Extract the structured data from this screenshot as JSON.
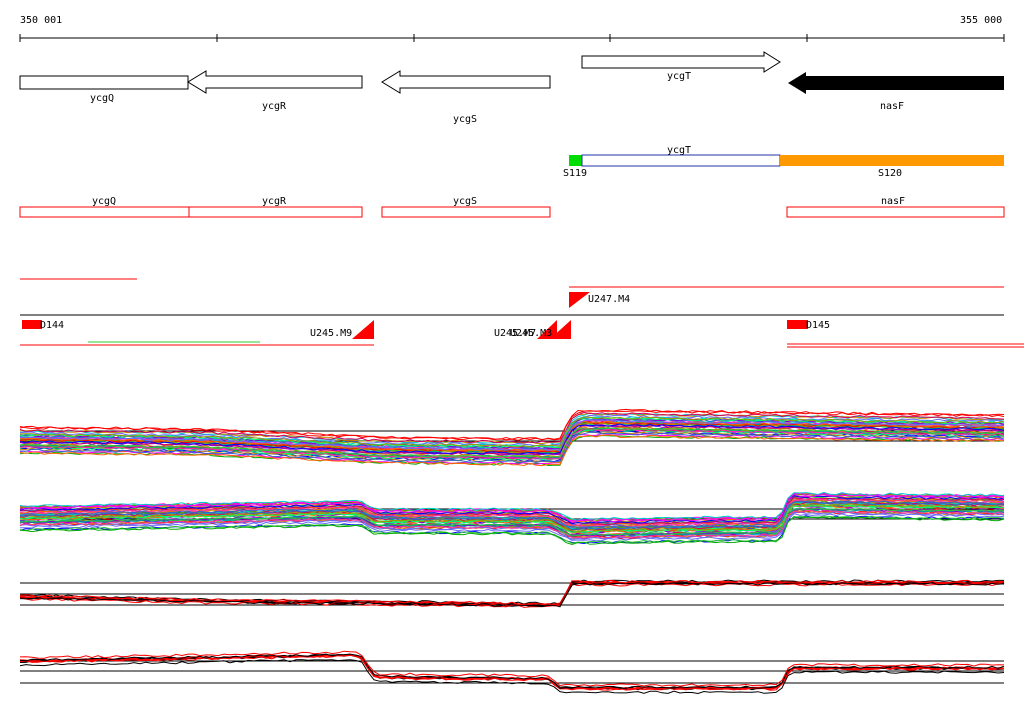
{
  "ruler": {
    "start_label": "350 001",
    "end_label": "355 000"
  },
  "genes_top": [
    {
      "label": "ycgQ"
    },
    {
      "label": "ycgR"
    },
    {
      "label": "ycgS"
    },
    {
      "label": "ycgT"
    },
    {
      "label": "nasF"
    }
  ],
  "segments": [
    {
      "label": "S119",
      "color": "#00dd00"
    },
    {
      "label": "ycgT",
      "color": "#2233aa"
    },
    {
      "label": "S120",
      "color": "#ff9900"
    }
  ],
  "annotations": [
    {
      "label": "ycgQ"
    },
    {
      "label": "ycgR"
    },
    {
      "label": "ycgS"
    },
    {
      "label": "nasF"
    }
  ],
  "markers": [
    {
      "label": "D144"
    },
    {
      "label": "U245.M9"
    },
    {
      "label": "U245.M7"
    },
    {
      "label": "U245.M3"
    },
    {
      "label": "U247.M4"
    },
    {
      "label": "D145"
    }
  ],
  "colors": {
    "annotation_box": "#ff0000",
    "marker": "#ff0000",
    "filled_arrow": "#000000"
  }
}
